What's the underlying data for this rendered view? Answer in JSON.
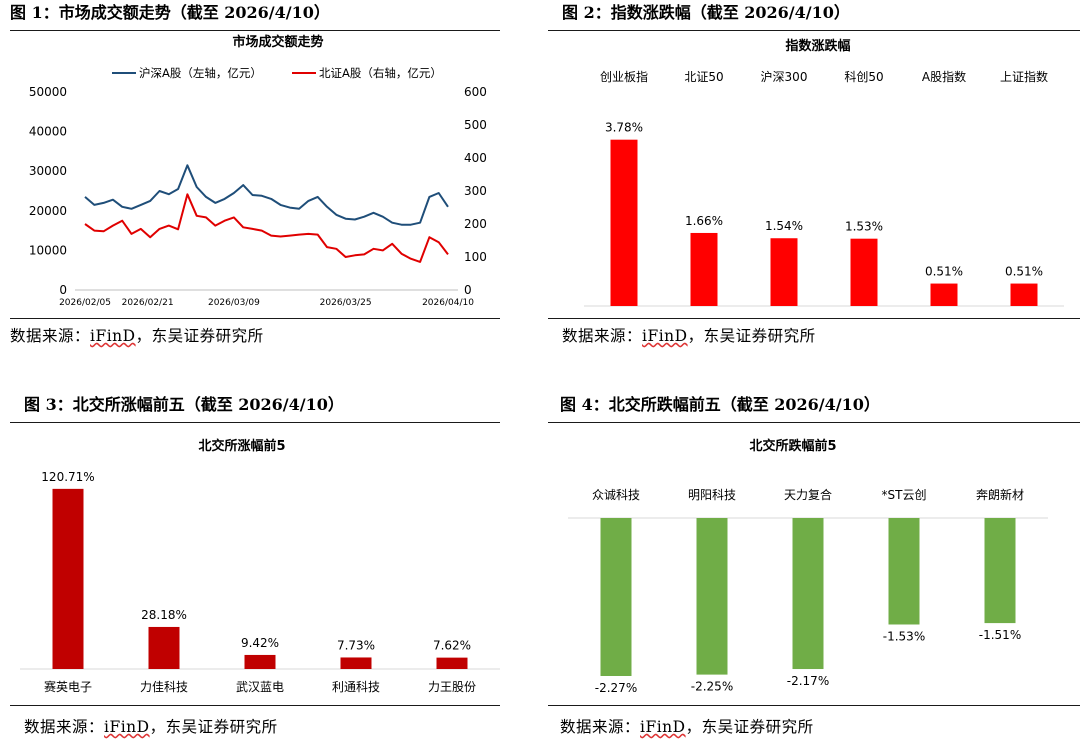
{
  "panels": [
    {
      "figure_title": "图 1：市场成交额走势（截至 2026/4/10）",
      "source_prefix": "数据来源：",
      "source_link": "iFinD",
      "source_suffix": "，东吴证券研究所"
    },
    {
      "figure_title": "图 2：指数涨跌幅（截至 2026/4/10）",
      "source_prefix": "数据来源：",
      "source_link": "iFinD",
      "source_suffix": "，东吴证券研究所"
    },
    {
      "figure_title": "图 3：北交所涨幅前五（截至 2026/4/10）",
      "source_prefix": "数据来源：",
      "source_link": "iFinD",
      "source_suffix": "，东吴证券研究所"
    },
    {
      "figure_title": "图 4：北交所跌幅前五（截至 2026/4/10）",
      "source_prefix": "数据来源：",
      "source_link": "iFinD",
      "source_suffix": "，东吴证券研究所"
    }
  ],
  "chart_data": [
    {
      "type": "line",
      "title": "市场成交额走势",
      "x": [
        "2026/02/05",
        "2026/02/06",
        "2026/02/09",
        "2026/02/10",
        "2026/02/11",
        "2026/02/12",
        "2026/02/13",
        "2026/02/24",
        "2026/02/25",
        "2026/02/26",
        "2026/02/27",
        "2026/03/02",
        "2026/03/03",
        "2026/03/04",
        "2026/03/05",
        "2026/03/06",
        "2026/03/09",
        "2026/03/10",
        "2026/03/11",
        "2026/03/12",
        "2026/03/13",
        "2026/03/16",
        "2026/03/17",
        "2026/03/18",
        "2026/03/19",
        "2026/03/20",
        "2026/03/23",
        "2026/03/24",
        "2026/03/25",
        "2026/03/26",
        "2026/03/27",
        "2026/03/30",
        "2026/03/31",
        "2026/04/01",
        "2026/04/02",
        "2026/04/03",
        "2026/04/07",
        "2026/04/08",
        "2026/04/09",
        "2026/04/10"
      ],
      "x_tick_labels": [
        "2026/02/05",
        "2026/02/21",
        "2026/03/09",
        "2026/03/25",
        "2026/04/10"
      ],
      "series": [
        {
          "name": "沪深A股（左轴，亿元）",
          "axis": "left",
          "color": "#1f4e79",
          "values": [
            23500,
            21500,
            22000,
            22800,
            21000,
            20500,
            21500,
            22500,
            25000,
            24200,
            25500,
            31500,
            26000,
            23500,
            22000,
            23000,
            24500,
            26500,
            24000,
            23800,
            23000,
            21500,
            20800,
            20500,
            22500,
            23500,
            21000,
            19000,
            18000,
            17800,
            18500,
            19500,
            18500,
            17000,
            16500,
            16500,
            17000,
            23500,
            24500,
            21000
          ]
        },
        {
          "name": "北证A股（右轴，亿元）",
          "axis": "right",
          "color": "#e00000",
          "values": [
            200,
            180,
            178,
            195,
            210,
            170,
            185,
            160,
            185,
            195,
            184,
            290,
            225,
            220,
            195,
            210,
            220,
            190,
            185,
            180,
            165,
            162,
            165,
            168,
            170,
            168,
            130,
            125,
            100,
            105,
            108,
            125,
            120,
            140,
            110,
            95,
            85,
            160,
            145,
            108
          ]
        }
      ],
      "ylim_left": [
        0,
        50000
      ],
      "ylim_right": [
        0,
        600
      ],
      "y_ticks_left": [
        "0",
        "10000",
        "20000",
        "30000",
        "40000",
        "50000"
      ],
      "y_ticks_right": [
        "0",
        "100",
        "200",
        "300",
        "400",
        "500",
        "600"
      ],
      "legend": "top"
    },
    {
      "type": "bar",
      "title": "指数涨跌幅",
      "categories": [
        "创业板指",
        "北证50",
        "沪深300",
        "科创50",
        "A股指数",
        "上证指数"
      ],
      "values": [
        3.78,
        1.66,
        1.54,
        1.53,
        0.51,
        0.51
      ],
      "labels": [
        "3.78%",
        "1.66%",
        "1.54%",
        "1.53%",
        "0.51%",
        "0.51%"
      ],
      "color": "#ff0000",
      "ylim": [
        0,
        4
      ]
    },
    {
      "type": "bar",
      "title": "北交所涨幅前5",
      "categories": [
        "赛英电子",
        "力佳科技",
        "武汉蓝电",
        "利通科技",
        "力王股份"
      ],
      "values": [
        120.71,
        28.18,
        9.42,
        7.73,
        7.62
      ],
      "labels": [
        "120.71%",
        "28.18%",
        "9.42%",
        "7.73%",
        "7.62%"
      ],
      "color": "#c00000",
      "ylim": [
        0,
        130
      ]
    },
    {
      "type": "bar",
      "title": "北交所跌幅前5",
      "categories": [
        "众诚科技",
        "明阳科技",
        "天力复合",
        "*ST云创",
        "奔朗新材"
      ],
      "values": [
        -2.27,
        -2.25,
        -2.17,
        -1.53,
        -1.51
      ],
      "labels": [
        "-2.27%",
        "-2.25%",
        "-2.17%",
        "-1.53%",
        "-1.51%"
      ],
      "color": "#70ad47",
      "ylim": [
        -2.5,
        0
      ]
    }
  ]
}
